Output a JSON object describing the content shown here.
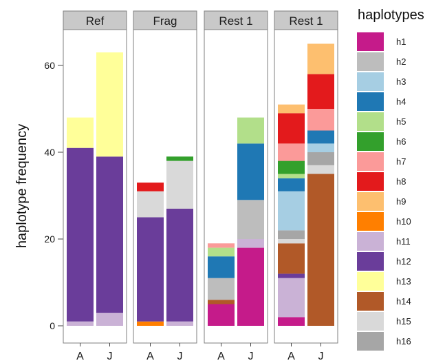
{
  "chart_data": {
    "type": "bar",
    "stacked": true,
    "ylabel": "haplotype frequency",
    "legend_title": "haplotypes",
    "legend_position": "right",
    "ylim": [
      0,
      68
    ],
    "yticks": [
      0,
      20,
      40,
      60
    ],
    "categories": [
      "A",
      "J"
    ],
    "panels": [
      {
        "label": "Ref",
        "bars": [
          {
            "x": "A",
            "segments": [
              {
                "h": "h11",
                "v": 1
              },
              {
                "h": "h12",
                "v": 40
              },
              {
                "h": "h13",
                "v": 7
              }
            ]
          },
          {
            "x": "J",
            "segments": [
              {
                "h": "h11",
                "v": 3
              },
              {
                "h": "h12",
                "v": 36
              },
              {
                "h": "h13",
                "v": 24
              }
            ]
          }
        ]
      },
      {
        "label": "Frag",
        "bars": [
          {
            "x": "A",
            "segments": [
              {
                "h": "h10",
                "v": 1
              },
              {
                "h": "h12",
                "v": 24
              },
              {
                "h": "h15",
                "v": 6
              },
              {
                "h": "h8",
                "v": 2
              }
            ]
          },
          {
            "x": "J",
            "segments": [
              {
                "h": "h11",
                "v": 1
              },
              {
                "h": "h12",
                "v": 26
              },
              {
                "h": "h15",
                "v": 11
              },
              {
                "h": "h6",
                "v": 1
              }
            ]
          }
        ]
      },
      {
        "label": "Rest 1",
        "bars": [
          {
            "x": "A",
            "segments": [
              {
                "h": "h1",
                "v": 5
              },
              {
                "h": "h14",
                "v": 1
              },
              {
                "h": "h2",
                "v": 5
              },
              {
                "h": "h4",
                "v": 5
              },
              {
                "h": "h5",
                "v": 2
              },
              {
                "h": "h7",
                "v": 1
              }
            ]
          },
          {
            "x": "J",
            "segments": [
              {
                "h": "h1",
                "v": 18
              },
              {
                "h": "h11",
                "v": 2
              },
              {
                "h": "h2",
                "v": 9
              },
              {
                "h": "h4",
                "v": 13
              },
              {
                "h": "h5",
                "v": 6
              }
            ]
          }
        ]
      },
      {
        "label": "Rest 1",
        "bars": [
          {
            "x": "A",
            "segments": [
              {
                "h": "h1",
                "v": 2
              },
              {
                "h": "h11",
                "v": 9
              },
              {
                "h": "h12",
                "v": 1
              },
              {
                "h": "h14",
                "v": 7
              },
              {
                "h": "h15",
                "v": 1
              },
              {
                "h": "h16",
                "v": 2
              },
              {
                "h": "h3",
                "v": 9
              },
              {
                "h": "h4",
                "v": 3
              },
              {
                "h": "h5",
                "v": 1
              },
              {
                "h": "h6",
                "v": 3
              },
              {
                "h": "h7",
                "v": 4
              },
              {
                "h": "h8",
                "v": 7
              },
              {
                "h": "h9",
                "v": 2
              }
            ]
          },
          {
            "x": "J",
            "segments": [
              {
                "h": "h14",
                "v": 35
              },
              {
                "h": "h15",
                "v": 2
              },
              {
                "h": "h16",
                "v": 3
              },
              {
                "h": "h3",
                "v": 2
              },
              {
                "h": "h4",
                "v": 3
              },
              {
                "h": "h7",
                "v": 5
              },
              {
                "h": "h8",
                "v": 8
              },
              {
                "h": "h9",
                "v": 7
              }
            ]
          }
        ]
      }
    ],
    "legend": [
      {
        "name": "h1",
        "color": "#c51b8a"
      },
      {
        "name": "h2",
        "color": "#bdbdbd"
      },
      {
        "name": "h3",
        "color": "#a6cee3"
      },
      {
        "name": "h4",
        "color": "#1f78b4"
      },
      {
        "name": "h5",
        "color": "#b2df8a"
      },
      {
        "name": "h6",
        "color": "#33a02c"
      },
      {
        "name": "h7",
        "color": "#fb9a99"
      },
      {
        "name": "h8",
        "color": "#e31a1c"
      },
      {
        "name": "h9",
        "color": "#fdbf6f"
      },
      {
        "name": "h10",
        "color": "#ff7f00"
      },
      {
        "name": "h11",
        "color": "#cab2d6"
      },
      {
        "name": "h12",
        "color": "#6a3d9a"
      },
      {
        "name": "h13",
        "color": "#ffff99"
      },
      {
        "name": "h14",
        "color": "#b15928"
      },
      {
        "name": "h15",
        "color": "#d9d9d9"
      },
      {
        "name": "h16",
        "color": "#a6a6a6"
      }
    ]
  }
}
